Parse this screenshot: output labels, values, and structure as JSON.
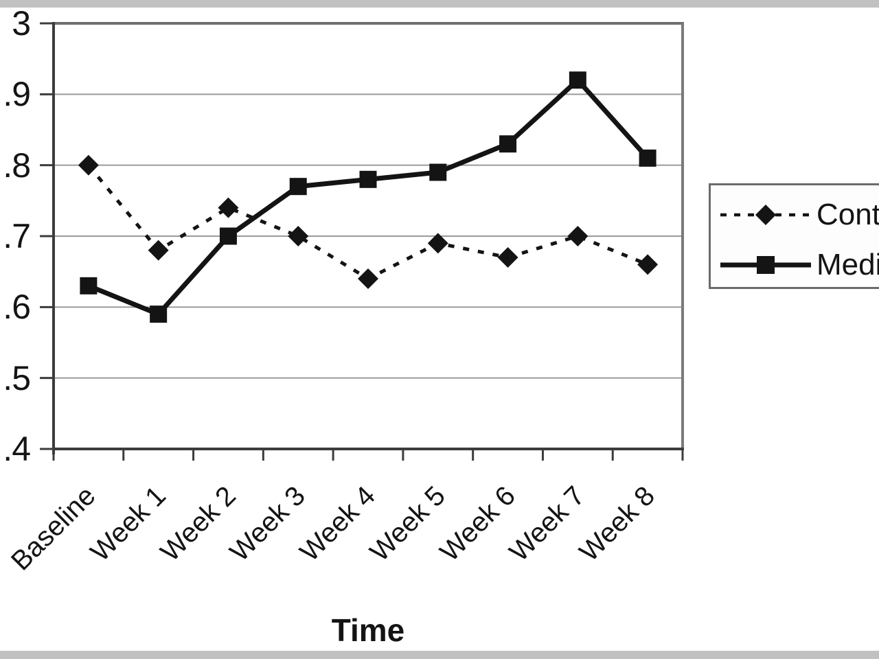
{
  "window": {
    "background_color": "#ffffff",
    "edge_bar_color": "#c1c1c1"
  },
  "chart_data": {
    "type": "line",
    "title": "",
    "xlabel": "Time",
    "ylabel": "",
    "categories": [
      "Baseline",
      "Week 1",
      "Week 2",
      "Week 3",
      "Week 4",
      "Week 5",
      "Week 6",
      "Week 7",
      "Week 8"
    ],
    "series": [
      {
        "name": "Cont",
        "line_style": "dotted",
        "marker": "diamond",
        "color": "#141414",
        "values": [
          2.8,
          2.68,
          2.74,
          2.7,
          2.64,
          2.69,
          2.67,
          2.7,
          2.66
        ]
      },
      {
        "name": "Medi",
        "line_style": "solid",
        "marker": "square",
        "color": "#141414",
        "values": [
          2.63,
          2.59,
          2.7,
          2.77,
          2.78,
          2.79,
          2.83,
          2.92,
          2.81
        ]
      }
    ],
    "ylim": [
      2.4,
      3.0
    ],
    "yticks": [
      {
        "value": 3.0,
        "label": "3"
      },
      {
        "value": 2.9,
        "label": ".9"
      },
      {
        "value": 2.8,
        "label": ".8"
      },
      {
        "value": 2.7,
        "label": ".7"
      },
      {
        "value": 2.6,
        "label": ".6"
      },
      {
        "value": 2.5,
        "label": ".5"
      },
      {
        "value": 2.4,
        "label": ".4"
      }
    ],
    "grid": true,
    "legend_position": "right",
    "axis_color": "#3c3c3c",
    "gridline_color": "#9a9a9a"
  }
}
